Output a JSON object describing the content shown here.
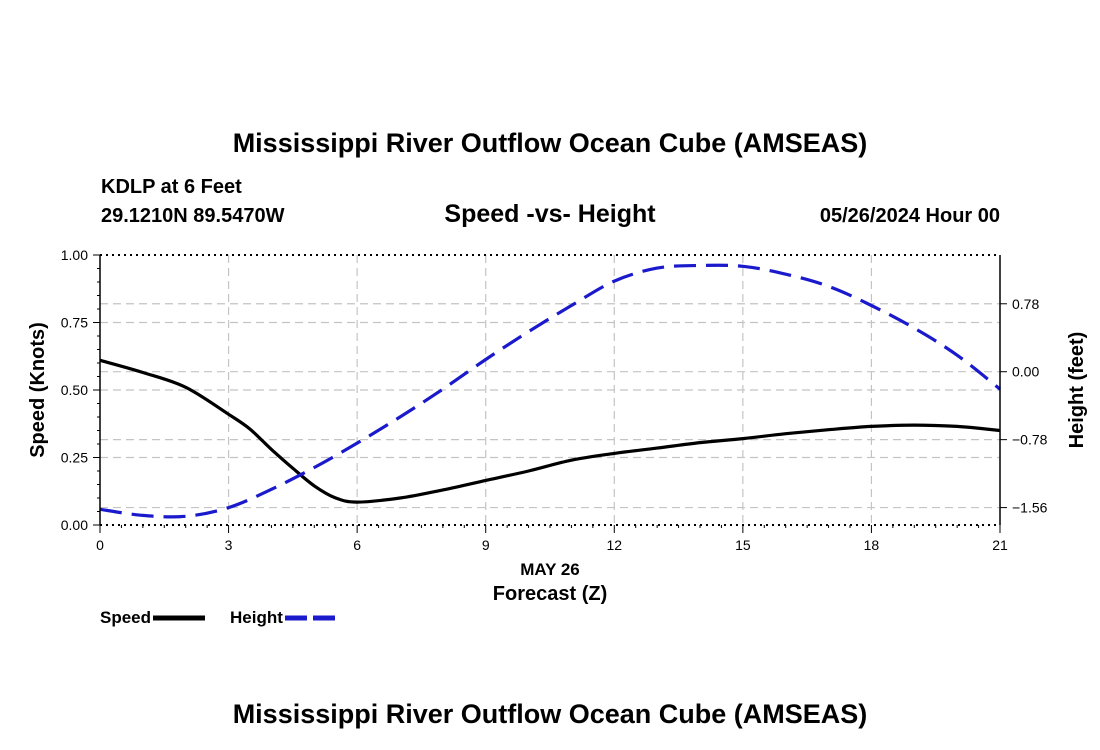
{
  "header": {
    "title": "Mississippi River Outflow Ocean Cube (AMSEAS)",
    "station": "KDLP at 6 Feet",
    "coords": "29.1210N  89.5470W",
    "date": "05/26/2024 Hour 00"
  },
  "footer": {
    "title": "Mississippi River Outflow Ocean Cube (AMSEAS)"
  },
  "chart_data": {
    "type": "line",
    "title": "Speed -vs- Height",
    "xlabel": "Forecast (Z)",
    "xsublabel": "MAY 26",
    "ylabel": "Speed (Knots)",
    "y2label": "Height (feet)",
    "xlim": [
      0,
      21
    ],
    "ylim": [
      0,
      1
    ],
    "y2lim": [
      -1.76,
      1.34
    ],
    "x_ticks": [
      0,
      3,
      6,
      9,
      12,
      15,
      18,
      21
    ],
    "x_tick_labels": [
      "0",
      "3",
      "6",
      "9",
      "12",
      "15",
      "18",
      "21"
    ],
    "y_ticks": [
      0,
      0.25,
      0.5,
      0.75,
      1.0
    ],
    "y_tick_labels": [
      "0.00",
      "0.25",
      "0.50",
      "0.75",
      "1.00"
    ],
    "y2_ticks": [
      -1.56,
      -0.78,
      0.0,
      0.78
    ],
    "y2_tick_labels": [
      "−1.56",
      "−0.78",
      "0.00",
      "0.78"
    ],
    "grid": true,
    "series": [
      {
        "name": "Speed",
        "axis": "left",
        "color": "#000000",
        "dash": "solid",
        "x": [
          0,
          1,
          2,
          3,
          3.5,
          4,
          4.5,
          5,
          5.5,
          6,
          7,
          8,
          9,
          10,
          11,
          12,
          13,
          14,
          15,
          16,
          17,
          18,
          19,
          20,
          21
        ],
        "values": [
          0.61,
          0.565,
          0.51,
          0.41,
          0.355,
          0.28,
          0.21,
          0.145,
          0.1,
          0.085,
          0.1,
          0.13,
          0.165,
          0.2,
          0.24,
          0.265,
          0.285,
          0.305,
          0.32,
          0.338,
          0.353,
          0.365,
          0.37,
          0.365,
          0.35
        ]
      },
      {
        "name": "Height",
        "axis": "right",
        "color": "#1a1acc",
        "dash": "dashed",
        "x": [
          0,
          1,
          2,
          3,
          4,
          5,
          6,
          7,
          8,
          9,
          10,
          11,
          12,
          13,
          14,
          15,
          16,
          17,
          18,
          19,
          20,
          21
        ],
        "values": [
          -1.58,
          -1.65,
          -1.66,
          -1.56,
          -1.35,
          -1.1,
          -0.82,
          -0.52,
          -0.2,
          0.14,
          0.46,
          0.76,
          1.04,
          1.19,
          1.22,
          1.21,
          1.12,
          0.98,
          0.76,
          0.5,
          0.19,
          -0.2
        ]
      }
    ]
  }
}
